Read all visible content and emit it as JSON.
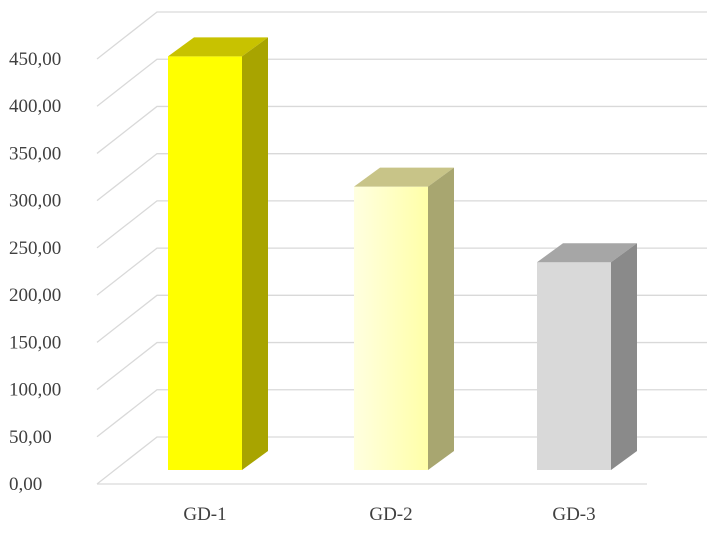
{
  "chart_data": {
    "type": "bar",
    "style": "3d-column",
    "categories": [
      "GD-1",
      "GD-2",
      "GD-3"
    ],
    "values": [
      438,
      300,
      220
    ],
    "colors": {
      "GD-1": {
        "front": "#ffff00",
        "top": "#c8c200",
        "side": "#a8a400"
      },
      "GD-2": {
        "front": "#ffffc0",
        "top": "#c8c488",
        "side": "#a8a670"
      },
      "GD-3": {
        "front": "#d9d9d9",
        "top": "#a6a6a6",
        "side": "#8a8a8a"
      }
    },
    "grid_color": "#d9d9d9",
    "ylim": [
      0,
      450
    ],
    "ytick_labels": [
      "0,00",
      "50,00",
      "100,00",
      "150,00",
      "200,00",
      "250,00",
      "300,00",
      "350,00",
      "400,00",
      "450,00"
    ],
    "grid": true,
    "title": "",
    "xlabel": "",
    "ylabel": ""
  }
}
